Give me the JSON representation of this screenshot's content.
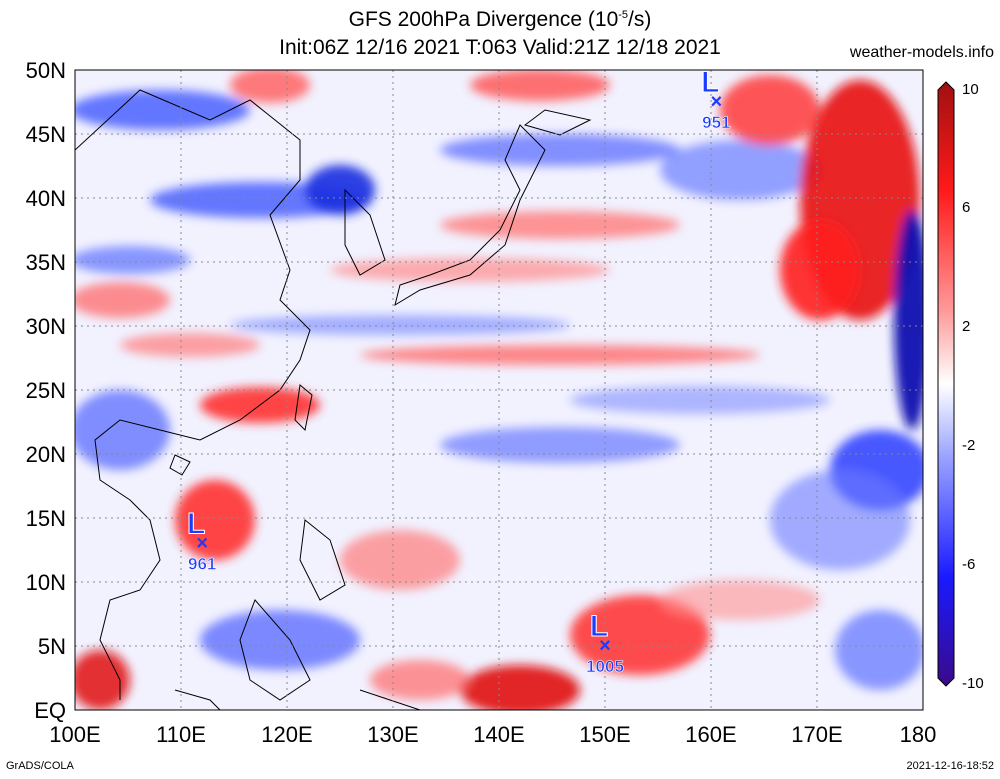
{
  "title_line1": "GFS 200hPa Divergence (10",
  "title_exp": "-5",
  "title_line1_tail": "/s)",
  "title_line2": "Init:06Z 12/16 2021 T:063 Valid:21Z 12/18 2021",
  "site": "weather-models.info",
  "footer_left": "GrADS/COLA",
  "footer_right": "2021-12-16-18:52",
  "lat_labels": [
    "50N",
    "45N",
    "40N",
    "35N",
    "30N",
    "25N",
    "20N",
    "15N",
    "10N",
    "5N",
    "EQ"
  ],
  "lon_labels": [
    "100E",
    "110E",
    "120E",
    "130E",
    "140E",
    "150E",
    "160E",
    "170E",
    "180"
  ],
  "colorbar_labels": [
    "10",
    "6",
    "2",
    "-2",
    "-6",
    "-10"
  ],
  "colors": {
    "low_marker": "#1a3cff",
    "strong_pos": "#d40000",
    "pos": "#ff6b6b",
    "neg": "#5a6fff",
    "strong_neg": "#1010d0"
  },
  "lows": [
    {
      "symbol": "L",
      "pressure": "951",
      "lon": 160.5,
      "lat": 47.5
    },
    {
      "symbol": "L",
      "pressure": "961",
      "lon": 112,
      "lat": 13
    },
    {
      "symbol": "L",
      "pressure": "1005",
      "lon": 150,
      "lat": 5
    }
  ]
}
